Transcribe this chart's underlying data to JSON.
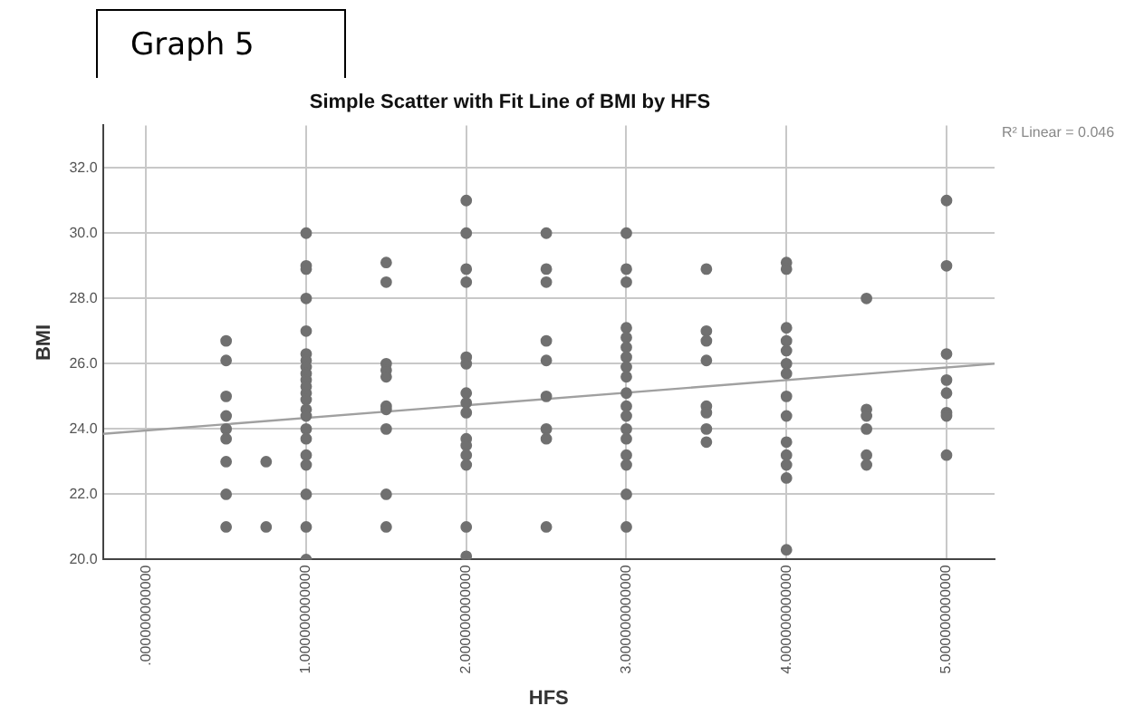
{
  "chart_data": {
    "type": "scatter",
    "title": "Simple Scatter with Fit Line of BMI by HFS",
    "xlabel": "HFS",
    "ylabel": "BMI",
    "annotations": [
      "Graph 5",
      "R² Linear = 0.046"
    ],
    "xlim": [
      -0.27,
      5.3
    ],
    "xticks": [
      {
        "value": 0,
        "label": ".000000000000"
      },
      {
        "value": 1,
        "label": "1.000000000000"
      },
      {
        "value": 2,
        "label": "2.000000000000"
      },
      {
        "value": 3,
        "label": "3.000000000000"
      },
      {
        "value": 4,
        "label": "4.000000000000"
      },
      {
        "value": 5,
        "label": "5.000000000000"
      }
    ],
    "ylim": [
      20,
      33.3
    ],
    "yticks": [
      {
        "value": 20,
        "label": "20.0"
      },
      {
        "value": 22,
        "label": "22.0"
      },
      {
        "value": 24,
        "label": "24.0"
      },
      {
        "value": 26,
        "label": "26.0"
      },
      {
        "value": 28,
        "label": "28.0"
      },
      {
        "value": 30,
        "label": "30.0"
      },
      {
        "value": 32,
        "label": "32.0"
      }
    ],
    "grid": true,
    "legend": false,
    "marker": "circle",
    "series": [
      {
        "type": "scatter",
        "color": "#707070",
        "x": [
          0.5,
          0.5,
          0.5,
          0.5,
          0.5,
          0.5,
          0.5,
          0.5,
          0.5,
          0.75,
          0.75,
          1,
          1,
          1,
          1,
          1,
          1,
          1,
          1,
          1,
          1,
          1,
          1,
          1,
          1,
          1,
          1,
          1,
          1,
          1,
          1,
          1,
          1,
          1.5,
          1.5,
          1.5,
          1.5,
          1.5,
          1.5,
          1.5,
          1.5,
          1.5,
          1.5,
          2,
          2,
          2,
          2,
          2,
          2,
          2,
          2,
          2,
          2,
          2,
          2,
          2,
          2,
          2,
          2.5,
          2.5,
          2.5,
          2.5,
          2.5,
          2.5,
          2.5,
          2.5,
          2.5,
          3,
          3,
          3,
          3,
          3,
          3,
          3,
          3,
          3,
          3,
          3,
          3,
          3,
          3,
          3,
          3,
          3,
          3,
          3.5,
          3.5,
          3.5,
          3.5,
          3.5,
          3.5,
          3.5,
          3.5,
          4,
          4,
          4,
          4,
          4,
          4,
          4,
          4,
          4,
          4,
          4,
          4,
          4,
          4,
          4.5,
          4.5,
          4.5,
          4.5,
          4.5,
          4.5,
          5,
          5,
          5,
          5,
          5,
          5,
          5,
          5
        ],
        "values": [
          26.7,
          26.1,
          25.0,
          24.4,
          24.0,
          23.7,
          23.0,
          22.0,
          21.0,
          23.0,
          21.0,
          30.0,
          29.0,
          28.9,
          28.0,
          27.0,
          26.3,
          26.1,
          25.9,
          25.7,
          25.5,
          25.1,
          24.9,
          24.6,
          24.4,
          24.0,
          23.7,
          23.2,
          22.9,
          22.0,
          21.0,
          20.0,
          25.3,
          29.1,
          28.5,
          26.0,
          25.8,
          25.6,
          24.7,
          24.6,
          24.0,
          22.0,
          21.0,
          31.0,
          30.0,
          28.9,
          28.5,
          26.2,
          26.0,
          25.1,
          24.8,
          24.5,
          23.7,
          23.5,
          23.2,
          22.9,
          21.0,
          20.1,
          30.0,
          28.9,
          28.5,
          26.7,
          26.1,
          25.0,
          24.0,
          23.7,
          21.0,
          30.0,
          28.9,
          28.5,
          27.1,
          26.8,
          26.2,
          25.9,
          25.6,
          25.1,
          24.7,
          24.4,
          24.0,
          23.7,
          23.2,
          22.9,
          22.0,
          21.0,
          26.5,
          28.9,
          27.0,
          26.7,
          26.1,
          24.7,
          24.5,
          24.0,
          23.6,
          29.1,
          28.9,
          27.1,
          26.7,
          26.0,
          25.7,
          25.0,
          24.4,
          23.6,
          23.2,
          22.9,
          22.5,
          20.3,
          26.4,
          28.0,
          24.6,
          24.4,
          24.0,
          23.2,
          22.9,
          31.0,
          29.0,
          26.3,
          25.5,
          25.1,
          24.5,
          24.4,
          23.2
        ]
      },
      {
        "type": "line",
        "color": "#a0a0a0",
        "marker": "none",
        "x": [
          -0.27,
          5.3
        ],
        "values": [
          23.85,
          26.0
        ]
      }
    ]
  }
}
